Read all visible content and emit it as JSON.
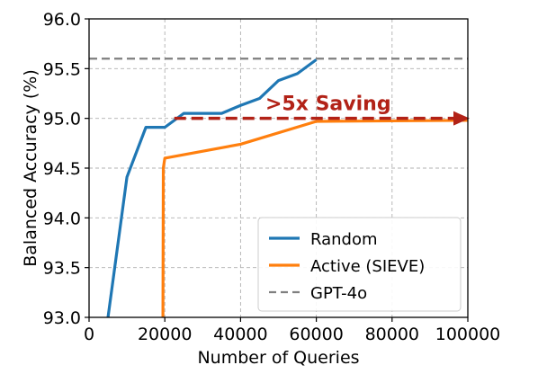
{
  "chart_data": {
    "type": "line",
    "title": "",
    "xlabel": "Number of Queries",
    "ylabel": "Balanced Accuracy (%)",
    "xlim": [
      0,
      100000
    ],
    "ylim": [
      93.0,
      96.0
    ],
    "xticks": [
      0,
      20000,
      40000,
      60000,
      80000,
      100000
    ],
    "xtick_labels": [
      "0",
      "20000",
      "40000",
      "60000",
      "80000",
      "100000"
    ],
    "yticks": [
      93.0,
      93.5,
      94.0,
      94.5,
      95.0,
      95.5,
      96.0
    ],
    "ytick_labels": [
      "93.0",
      "93.5",
      "94.0",
      "94.5",
      "95.0",
      "95.5",
      "96.0"
    ],
    "grid": true,
    "legend_position": "lower-right",
    "series": [
      {
        "name": "Random",
        "color": "#1f77b4",
        "style": "solid",
        "x": [
          5000,
          10000,
          15000,
          20000,
          22500,
          25000,
          30000,
          35000,
          40000,
          45000,
          50000,
          55000,
          60000
        ],
        "y": [
          93.0,
          94.41,
          94.91,
          94.91,
          94.98,
          95.05,
          95.05,
          95.05,
          95.13,
          95.2,
          95.38,
          95.45,
          95.59
        ]
      },
      {
        "name": "Active (SIEVE)",
        "color": "#ff7f0e",
        "style": "solid",
        "x": [
          19500,
          19600,
          20000,
          40000,
          60000,
          100000
        ],
        "y": [
          92.98,
          94.5,
          94.6,
          94.74,
          94.97,
          94.98
        ]
      },
      {
        "name": "GPT-4o",
        "color": "#7f7f7f",
        "style": "dashed",
        "x": [
          0,
          100000
        ],
        "y": [
          95.6,
          95.6
        ]
      }
    ],
    "annotations": [
      {
        "text": ">5x Saving",
        "color": "#b22217",
        "arrow_from": [
          22500,
          95.0
        ],
        "arrow_to": [
          100000,
          95.0
        ]
      }
    ]
  }
}
